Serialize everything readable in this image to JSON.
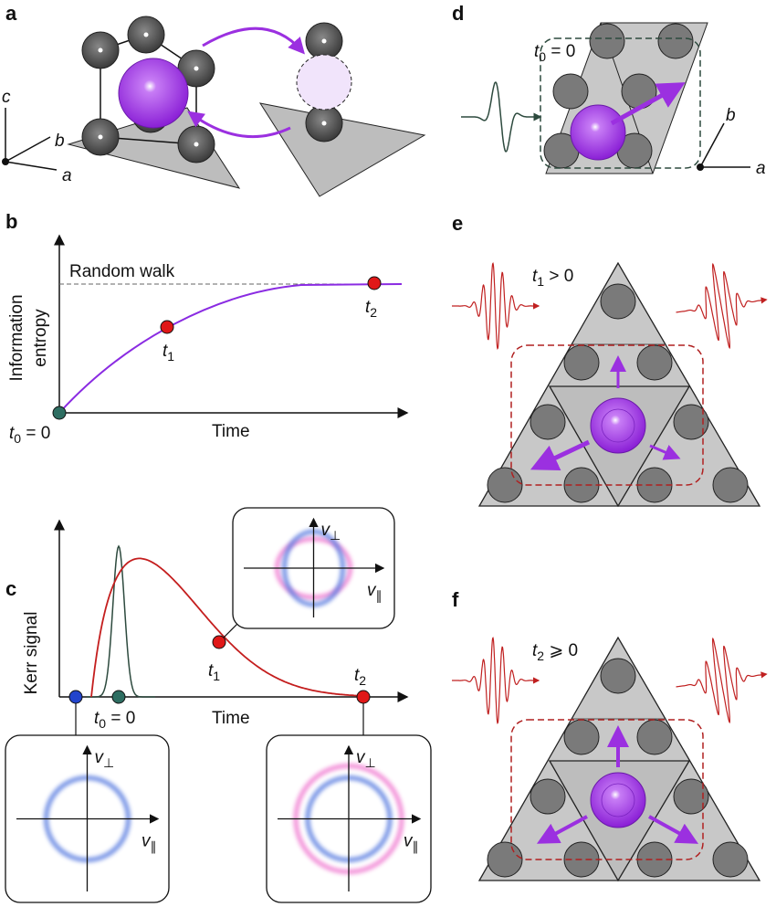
{
  "panels": {
    "a": "a",
    "b": "b",
    "c": "c",
    "d": "d",
    "e": "e",
    "f": "f"
  },
  "axes_a": {
    "a": "a",
    "b": "b",
    "c": "c"
  },
  "axes_d": {
    "a": "a",
    "b": "b"
  },
  "panel_b": {
    "random_walk": "Random walk",
    "ylabel_1": "Information",
    "ylabel_2": "entropy",
    "xlabel": "Time",
    "t0": {
      "var": "t",
      "sub": "0",
      "rest": " = 0"
    },
    "t1": {
      "var": "t",
      "sub": "1"
    },
    "t2": {
      "var": "t",
      "sub": "2"
    }
  },
  "panel_c": {
    "ylabel": "Kerr signal",
    "xlabel": "Time",
    "t0": {
      "var": "t",
      "sub": "0",
      "rest": " = 0"
    },
    "t1": {
      "var": "t",
      "sub": "1"
    },
    "t2": {
      "var": "t",
      "sub": "2"
    },
    "v_perp": {
      "var": "v",
      "sub": "⊥"
    },
    "v_par": {
      "var": "v",
      "sub": "∥"
    }
  },
  "panel_d": {
    "t": {
      "var": "t",
      "sub": "0",
      "rest": " = 0"
    }
  },
  "panel_e": {
    "t": {
      "var": "t",
      "sub": "1",
      "rest": " > 0"
    }
  },
  "panel_f": {
    "t": {
      "var": "t",
      "sub": "2",
      "rest": " ⩾ 0"
    }
  },
  "colors": {
    "purple": "#9b30e0",
    "red": "#e01818",
    "teal": "#2e6e62",
    "blue": "#2244cc",
    "gray": "#c8c8c8",
    "ball": "#777777",
    "dashed_red": "#b02020",
    "dashed_green": "#2d4a3e"
  }
}
